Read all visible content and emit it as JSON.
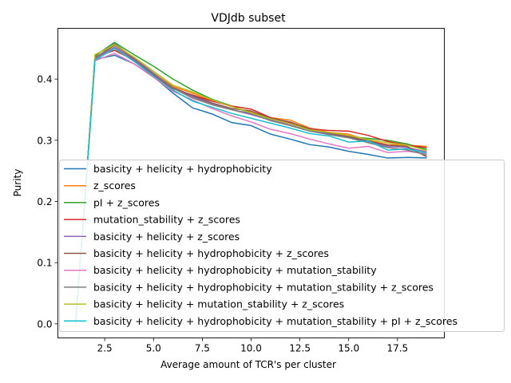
{
  "chart_data": {
    "type": "line",
    "title": "VDJdb subset",
    "xlabel": "Average amount of TCR's per cluster",
    "ylabel": "Purity",
    "xlim": [
      0.1,
      19.9
    ],
    "ylim": [
      -0.023,
      0.483
    ],
    "xticks": [
      2.5,
      5.0,
      7.5,
      10.0,
      12.5,
      15.0,
      17.5
    ],
    "xtick_labels": [
      "2.5",
      "5.0",
      "7.5",
      "10.0",
      "12.5",
      "15.0",
      "17.5"
    ],
    "yticks": [
      0.0,
      0.1,
      0.2,
      0.3,
      0.4
    ],
    "ytick_labels": [
      "0.0",
      "0.1",
      "0.2",
      "0.3",
      "0.4"
    ],
    "grid": false,
    "legend_position": "lower-right",
    "x": [
      1,
      1.5,
      2,
      3,
      4,
      5,
      6,
      7,
      8,
      9,
      10,
      11,
      12,
      13,
      14,
      15,
      16,
      17,
      18,
      19
    ],
    "series": [
      {
        "name": "basicity + helicity + hydrophobicity",
        "color": "#1f77b4",
        "values": [
          0.0,
          0.21,
          0.432,
          0.439,
          0.425,
          0.404,
          0.377,
          0.353,
          0.343,
          0.329,
          0.324,
          0.31,
          0.302,
          0.293,
          0.289,
          0.282,
          0.277,
          0.271,
          0.272,
          0.271
        ]
      },
      {
        "name": "z_scores",
        "color": "#ff7f0e",
        "values": [
          0.0,
          0.21,
          0.437,
          0.451,
          0.432,
          0.41,
          0.388,
          0.377,
          0.365,
          0.355,
          0.346,
          0.337,
          0.333,
          0.32,
          0.313,
          0.31,
          0.3,
          0.293,
          0.292,
          0.29
        ]
      },
      {
        "name": "pI + z_scores",
        "color": "#2ca02c",
        "values": [
          0.0,
          0.21,
          0.438,
          0.46,
          0.44,
          0.421,
          0.4,
          0.382,
          0.367,
          0.356,
          0.344,
          0.334,
          0.327,
          0.315,
          0.311,
          0.306,
          0.303,
          0.3,
          0.294,
          0.285
        ]
      },
      {
        "name": "mutation_stability + z_scores",
        "color": "#d62728",
        "values": [
          0.0,
          0.21,
          0.436,
          0.447,
          0.431,
          0.407,
          0.384,
          0.374,
          0.364,
          0.356,
          0.351,
          0.337,
          0.329,
          0.319,
          0.316,
          0.315,
          0.308,
          0.298,
          0.292,
          0.288
        ]
      },
      {
        "name": "basicity + helicity + z_scores",
        "color": "#9467bd",
        "values": [
          0.0,
          0.21,
          0.433,
          0.452,
          0.432,
          0.408,
          0.386,
          0.371,
          0.36,
          0.35,
          0.342,
          0.333,
          0.326,
          0.316,
          0.31,
          0.305,
          0.298,
          0.29,
          0.288,
          0.281
        ]
      },
      {
        "name": "basicity + helicity + hydrophobicity + z_scores",
        "color": "#8c564b",
        "values": [
          0.0,
          0.21,
          0.435,
          0.455,
          0.434,
          0.409,
          0.386,
          0.373,
          0.361,
          0.352,
          0.348,
          0.336,
          0.33,
          0.318,
          0.312,
          0.306,
          0.299,
          0.292,
          0.29,
          0.273
        ]
      },
      {
        "name": "basicity + helicity + hydrophobicity + mutation_stability",
        "color": "#e377c2",
        "values": [
          0.0,
          0.21,
          0.43,
          0.442,
          0.425,
          0.403,
          0.38,
          0.366,
          0.352,
          0.34,
          0.33,
          0.318,
          0.311,
          0.302,
          0.294,
          0.287,
          0.29,
          0.28,
          0.282,
          0.278
        ]
      },
      {
        "name": "basicity + helicity + hydrophobicity + mutation_stability + z_scores",
        "color": "#7f7f7f",
        "values": [
          0.0,
          0.21,
          0.434,
          0.458,
          0.435,
          0.41,
          0.385,
          0.369,
          0.358,
          0.35,
          0.344,
          0.332,
          0.324,
          0.315,
          0.309,
          0.304,
          0.296,
          0.288,
          0.284,
          0.276
        ]
      },
      {
        "name": "basicity + helicity + mutation_stability + z_scores",
        "color": "#bcbd22",
        "values": [
          0.0,
          0.21,
          0.44,
          0.456,
          0.436,
          0.413,
          0.39,
          0.379,
          0.366,
          0.355,
          0.345,
          0.335,
          0.327,
          0.317,
          0.313,
          0.308,
          0.301,
          0.296,
          0.292,
          0.283
        ]
      },
      {
        "name": "basicity + helicity + hydrophobicity + mutation_stability + pI + z_scores",
        "color": "#17becf",
        "values": [
          0.0,
          0.21,
          0.431,
          0.45,
          0.429,
          0.405,
          0.382,
          0.364,
          0.354,
          0.344,
          0.336,
          0.328,
          0.32,
          0.311,
          0.307,
          0.297,
          0.299,
          0.284,
          0.286,
          0.279
        ]
      }
    ]
  }
}
